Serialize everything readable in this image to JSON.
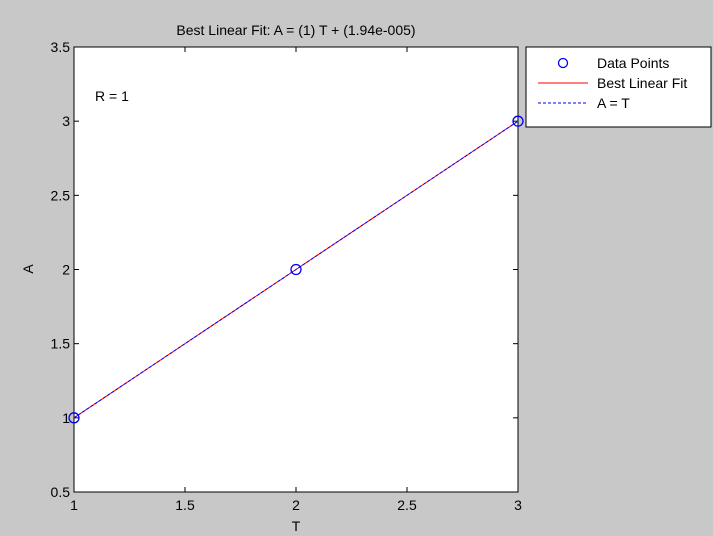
{
  "chart_data": {
    "type": "scatter",
    "title": "Best Linear Fit:  A = (1) T + (1.94e-005)",
    "xlabel": "T",
    "ylabel": "A",
    "xlim": [
      1,
      3
    ],
    "ylim": [
      0.5,
      3.5
    ],
    "xticks": [
      1,
      1.5,
      2,
      2.5,
      3
    ],
    "yticks": [
      0.5,
      1,
      1.5,
      2,
      2.5,
      3,
      3.5
    ],
    "xtick_labels": [
      "1",
      "1.5",
      "2",
      "2.5",
      "3"
    ],
    "ytick_labels": [
      "0.5",
      "1",
      "1.5",
      "2",
      "2.5",
      "3",
      "3.5"
    ],
    "annotation": "R = 1",
    "grid": false,
    "legend_position": "outside-top-right",
    "series": [
      {
        "name": "Data Points",
        "kind": "markers",
        "marker": "circle",
        "color": "#0000ff",
        "x": [
          1,
          2,
          3
        ],
        "y": [
          1,
          2,
          3
        ]
      },
      {
        "name": "Best Linear Fit",
        "kind": "line",
        "style": "solid",
        "color": "#ff0000",
        "x": [
          1,
          3
        ],
        "y": [
          1.0000194,
          3.0000194
        ]
      },
      {
        "name": "A = T",
        "kind": "line",
        "style": "dashed",
        "color": "#0000ff",
        "x": [
          1,
          3
        ],
        "y": [
          1,
          3
        ]
      }
    ]
  },
  "colors": {
    "figure_background": "#c8c8c8",
    "axes_background": "#ffffff"
  }
}
